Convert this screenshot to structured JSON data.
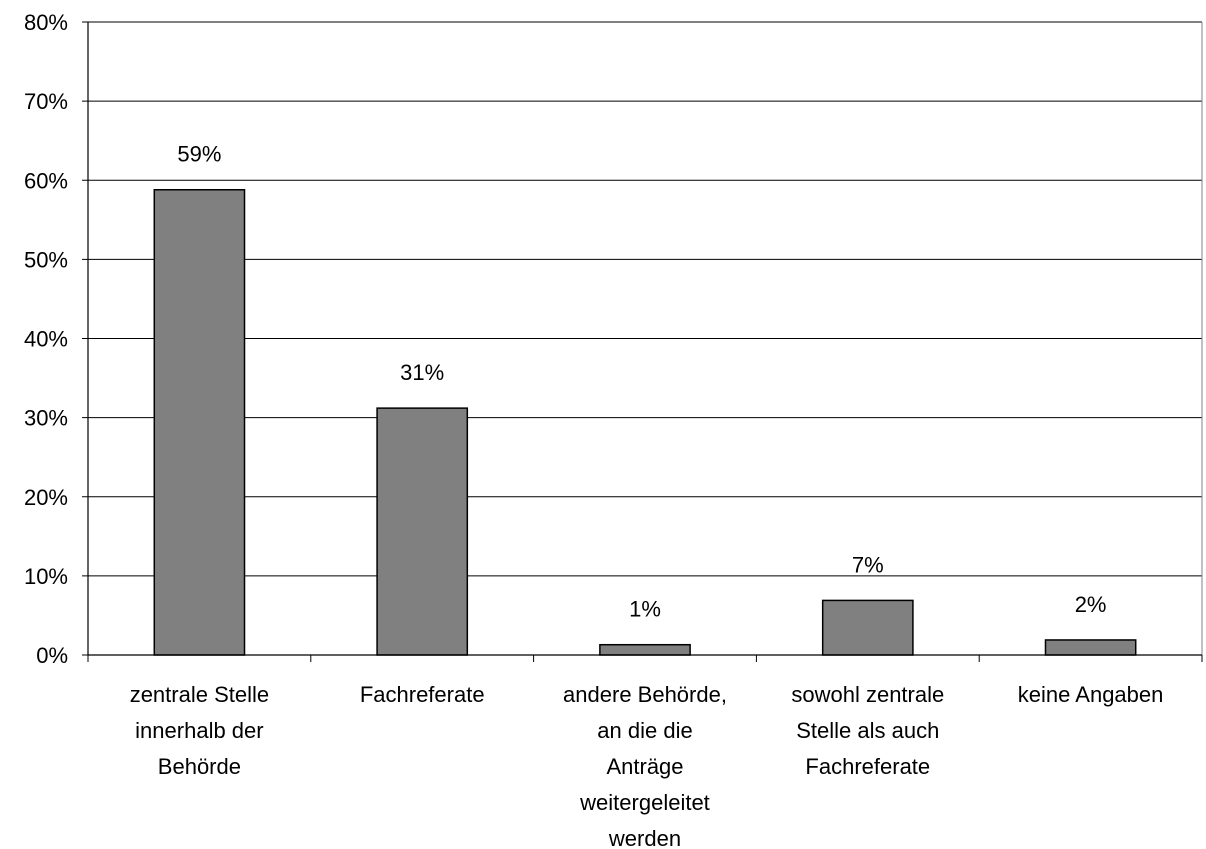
{
  "chart_data": {
    "type": "bar",
    "title": "",
    "xlabel": "",
    "ylabel": "",
    "categories": [
      "zentrale Stelle innerhalb der Behörde",
      "Fachreferate",
      "andere Behörde, an die die Anträge weitergeleitet werden",
      "sowohl zentrale Stelle als auch Fachreferate",
      "keine Angaben"
    ],
    "category_lines": [
      [
        "zentrale Stelle",
        "innerhalb der",
        "Behörde"
      ],
      [
        "Fachreferate"
      ],
      [
        "andere Behörde,",
        "an die die",
        "Anträge",
        "weitergeleitet",
        "werden"
      ],
      [
        "sowohl zentrale",
        "Stelle als auch",
        "Fachreferate"
      ],
      [
        "keine Angaben"
      ]
    ],
    "values": [
      58.8,
      31.2,
      1.3,
      6.9,
      1.9
    ],
    "data_labels": [
      "59%",
      "31%",
      "1%",
      "7%",
      "2%"
    ],
    "ylim": [
      0,
      80
    ],
    "yticks": [
      0,
      10,
      20,
      30,
      40,
      50,
      60,
      70,
      80
    ],
    "ytick_labels": [
      "0%",
      "10%",
      "20%",
      "30%",
      "40%",
      "50%",
      "60%",
      "70%",
      "80%"
    ],
    "grid": true,
    "legend": "none",
    "bar_color": "#808080"
  }
}
